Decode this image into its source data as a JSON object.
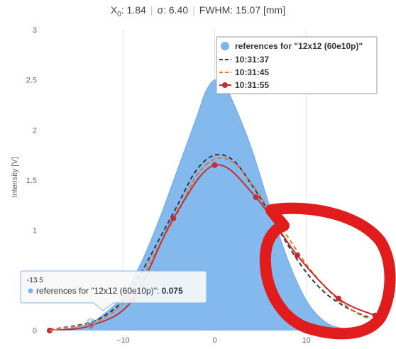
{
  "stats": {
    "x0_symbol": "X",
    "x0_sub": "0",
    "x0_value": ": 1.84",
    "sigma_label": "σ: 6.40",
    "fwhm_label": "FWHM: 15.07 [mm]"
  },
  "chart_data": {
    "type": "area",
    "xlabel": "",
    "ylabel": "Intensity [V]",
    "xlim": [
      -18,
      18
    ],
    "ylim": [
      0,
      3
    ],
    "x_ticks": [
      -10,
      0,
      10
    ],
    "y_ticks": [
      0,
      0.5,
      1,
      1.5,
      2,
      2.5,
      3
    ],
    "x_tick_labels": [
      "−10",
      "0",
      "10"
    ],
    "y_tick_labels": [
      "0",
      "0.5",
      "1",
      "1.5",
      "2",
      "2.5",
      "3"
    ],
    "grid": "vertical",
    "legend_position": "top-right",
    "series": [
      {
        "name": "references for \"12x12 (60e10p)\"",
        "type": "area",
        "color": "#7cb5ec",
        "x": [
          -18,
          -16,
          -14,
          -13.5,
          -12,
          -10,
          -8,
          -6,
          -4,
          -2,
          -1,
          0,
          1,
          2,
          4,
          6,
          8,
          10,
          12,
          14,
          16,
          18
        ],
        "y": [
          0.002,
          0.02,
          0.06,
          0.075,
          0.17,
          0.35,
          0.68,
          1.12,
          1.62,
          2.12,
          2.38,
          2.5,
          2.45,
          2.28,
          1.82,
          1.24,
          0.7,
          0.3,
          0.09,
          0.02,
          0.005,
          0.0
        ]
      },
      {
        "name": "10:31:37",
        "type": "line",
        "dash": "dash",
        "color": "#2f3650",
        "x": [
          -18,
          -14,
          -12,
          -10,
          -8,
          -6,
          -4,
          -2,
          0,
          2,
          4,
          6,
          8,
          10,
          12,
          14,
          16,
          17
        ],
        "y": [
          0.01,
          0.07,
          0.15,
          0.3,
          0.58,
          0.92,
          1.26,
          1.6,
          1.75,
          1.7,
          1.46,
          1.17,
          0.85,
          0.58,
          0.38,
          0.25,
          0.16,
          0.13
        ]
      },
      {
        "name": "10:31:45",
        "type": "line",
        "dash": "dash",
        "color": "#e3762b",
        "x": [
          -18,
          -14,
          -12,
          -10,
          -8,
          -6,
          -4,
          -2,
          0,
          2,
          4,
          6,
          8,
          10,
          12,
          14,
          16,
          17
        ],
        "y": [
          0.01,
          0.06,
          0.13,
          0.27,
          0.52,
          0.86,
          1.18,
          1.54,
          1.71,
          1.68,
          1.47,
          1.2,
          0.93,
          0.66,
          0.44,
          0.27,
          0.15,
          0.12
        ]
      },
      {
        "name": "10:31:55",
        "type": "line",
        "color": "#c42d2d",
        "x": [
          -18,
          -13.5,
          -9,
          -4.5,
          0,
          4.5,
          9,
          13.5,
          17.5
        ],
        "y": [
          0.0,
          0.05,
          0.3,
          1.12,
          1.65,
          1.33,
          0.75,
          0.32,
          0.15
        ]
      }
    ],
    "tooltip": {
      "header": "-13.5",
      "series_name": "references for \"12x12 (60e10p)\"",
      "value": "0.075"
    }
  },
  "annotation": {
    "color": "#e01c1c"
  }
}
